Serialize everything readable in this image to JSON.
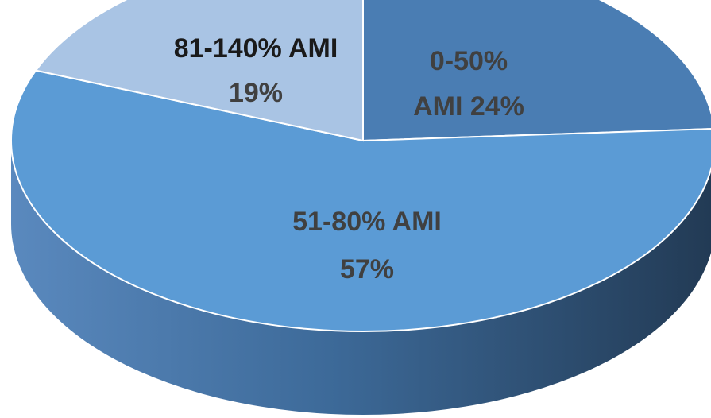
{
  "chart_data": {
    "type": "pie",
    "title": "",
    "slices": [
      {
        "category": "0-50% AMI",
        "value": 24,
        "value_label": "24%",
        "label_lines": [
          "0-50%",
          "AMI 24%"
        ],
        "color": "#4A7DB3",
        "label_color": "#404040"
      },
      {
        "category": "51-80% AMI",
        "value": 57,
        "value_label": "57%",
        "label_lines": [
          "51-80% AMI",
          "57%"
        ],
        "color": "#5B9BD5",
        "label_color": "#404040"
      },
      {
        "category": "81-140% AMI",
        "value": 19,
        "value_label": "19%",
        "label_lines": [
          "81-140% AMI",
          "19%"
        ],
        "color": "#A9C4E4",
        "label_color": "#404040"
      }
    ],
    "style": "3d",
    "legend": "none"
  }
}
